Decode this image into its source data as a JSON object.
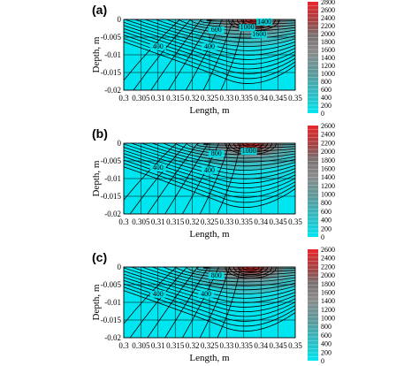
{
  "colors": {
    "low": "#00e6f0",
    "mid": "#808080",
    "high": "#e8262c",
    "grid": "#000000",
    "contour": "#000000"
  },
  "chart_data": [
    {
      "type": "heatmap",
      "panel": "(a)",
      "xlabel": "Length, m",
      "ylabel": "Depth, m",
      "xlim": [
        0.3,
        0.35
      ],
      "ylim": [
        -0.02,
        0
      ],
      "xticks": [
        "0.3",
        "0.305",
        "0.31",
        "0.315",
        "0.32",
        "0.325",
        "0.33",
        "0.335",
        "0.34",
        "0.345",
        "0.35"
      ],
      "yticks": [
        "0",
        "-0.005",
        "-0.01",
        "-0.015",
        "-0.02"
      ],
      "colorbar": {
        "min": 0,
        "max": 2800,
        "ticks": [
          "0",
          "200",
          "400",
          "600",
          "800",
          "1000",
          "1200",
          "1400",
          "1600",
          "1800",
          "2000",
          "2200",
          "2400",
          "2600",
          "2800"
        ]
      },
      "peak": {
        "x": 0.338,
        "y": 0,
        "value": 2900
      },
      "contour_labels": [
        {
          "text": "400",
          "x": 0.31,
          "y": -0.0082
        },
        {
          "text": "400",
          "x": 0.325,
          "y": -0.0082
        },
        {
          "text": "600",
          "x": 0.327,
          "y": -0.0035
        },
        {
          "text": "1000",
          "x": 0.336,
          "y": -0.0028
        },
        {
          "text": "1400",
          "x": 0.341,
          "y": -0.0012
        },
        {
          "text": "1600",
          "x": 0.3395,
          "y": -0.0048
        }
      ]
    },
    {
      "type": "heatmap",
      "panel": "(b)",
      "xlabel": "Length, m",
      "ylabel": "Depth, m",
      "xlim": [
        0.3,
        0.35
      ],
      "ylim": [
        -0.02,
        0
      ],
      "xticks": [
        "0.3",
        "0.305",
        "0.31",
        "0.315",
        "0.32",
        "0.325",
        "0.33",
        "0.335",
        "0.34",
        "0.345",
        "0.35"
      ],
      "yticks": [
        "0",
        "-0.005",
        "-0.01",
        "-0.015",
        "-0.02"
      ],
      "colorbar": {
        "min": 0,
        "max": 2600,
        "ticks": [
          "0",
          "200",
          "400",
          "600",
          "800",
          "1000",
          "1200",
          "1400",
          "1600",
          "1800",
          "2000",
          "2200",
          "2400",
          "2600"
        ]
      },
      "peak": {
        "x": 0.337,
        "y": 0,
        "value": 2650
      },
      "contour_labels": [
        {
          "text": "400",
          "x": 0.31,
          "y": -0.0075
        },
        {
          "text": "400",
          "x": 0.325,
          "y": -0.0082
        },
        {
          "text": "800",
          "x": 0.327,
          "y": -0.0035
        },
        {
          "text": "1000",
          "x": 0.3365,
          "y": -0.0028
        }
      ]
    },
    {
      "type": "heatmap",
      "panel": "(c)",
      "xlabel": "Length, m",
      "ylabel": "Depth, m",
      "xlim": [
        0.3,
        0.35
      ],
      "ylim": [
        -0.02,
        0
      ],
      "xticks": [
        "0.3",
        "0.305",
        "0.31",
        "0.315",
        "0.32",
        "0.325",
        "0.33",
        "0.335",
        "0.34",
        "0.345",
        "0.35"
      ],
      "yticks": [
        "0",
        "-0.005",
        "-0.01",
        "-0.015",
        "-0.02"
      ],
      "colorbar": {
        "min": 0,
        "max": 2600,
        "ticks": [
          "0",
          "200",
          "400",
          "600",
          "800",
          "1000",
          "1200",
          "1400",
          "1600",
          "1800",
          "2000",
          "2200",
          "2400",
          "2600"
        ]
      },
      "peak": {
        "x": 0.337,
        "y": 0,
        "value": 2650
      },
      "contour_labels": [
        {
          "text": "400",
          "x": 0.31,
          "y": -0.0082
        },
        {
          "text": "400",
          "x": 0.324,
          "y": -0.0082
        },
        {
          "text": "800",
          "x": 0.327,
          "y": -0.003
        }
      ]
    }
  ]
}
